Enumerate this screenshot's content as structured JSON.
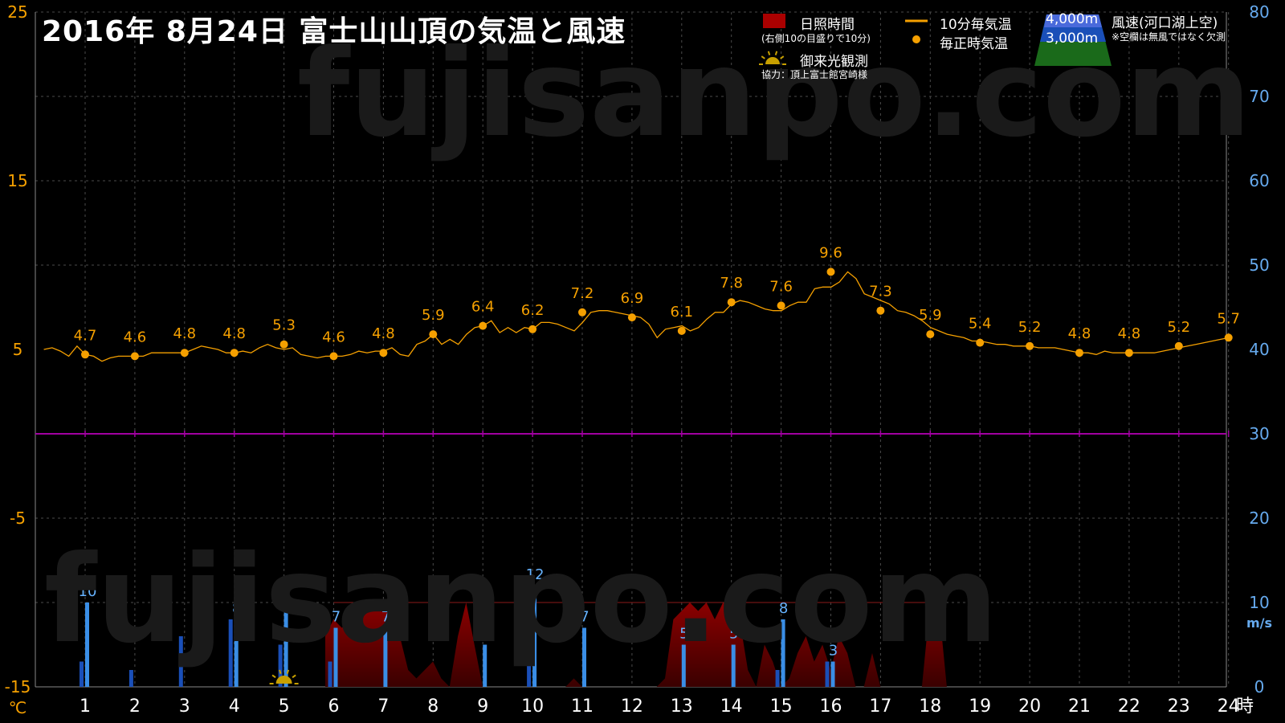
{
  "title": "2016年  8月24日   富士山山頂の気温と風速",
  "watermark": "fujisanpo.com",
  "legend": {
    "sunshine_label": "日照時間",
    "sunshine_note": "(右側10の目盛りで10分)",
    "temp10_label": "10分毎気温",
    "hourly_label": "毎正時気温",
    "goraiko_label": "御来光観測",
    "credit": "協力：頂上富士館宮崎様",
    "wind_4000": "4,000m",
    "wind_3000": "3,000m",
    "wind_label": "風速(河口湖上空)",
    "wind_note": "※空欄は無風ではなく欠測"
  },
  "colors": {
    "temp": "#f5a000",
    "wind_4000": "#3a8ee6",
    "wind_3000": "#1a4fb8",
    "sunshine": "#8b0000",
    "zero_line": "#a000a0",
    "left_axis": "#f5a000",
    "right_axis": "#66aaee"
  },
  "chart_data": {
    "type": "line",
    "x_unit": "時",
    "x_ticks": [
      "1",
      "2",
      "3",
      "4",
      "5",
      "6",
      "7",
      "8",
      "9",
      "10",
      "11",
      "12",
      "13",
      "14",
      "15",
      "16",
      "17",
      "18",
      "19",
      "20",
      "21",
      "22",
      "23",
      "24"
    ],
    "y_left": {
      "unit": "℃",
      "ticks": [
        "25",
        "15",
        "5",
        "-5",
        "-15"
      ],
      "range": [
        -15,
        25
      ]
    },
    "y_right": {
      "unit": "m/s",
      "ticks": [
        "80",
        "70",
        "60",
        "50",
        "40",
        "30",
        "20",
        "10",
        "0"
      ],
      "range": [
        0,
        80
      ]
    },
    "hourly_temperature": {
      "hours": [
        1,
        2,
        3,
        4,
        5,
        6,
        7,
        8,
        9,
        10,
        11,
        12,
        13,
        14,
        15,
        16,
        17,
        18,
        19,
        20,
        21,
        22,
        23,
        24
      ],
      "values": [
        4.7,
        4.6,
        4.8,
        4.8,
        5.3,
        4.6,
        4.8,
        5.9,
        6.4,
        6.2,
        7.2,
        6.9,
        6.1,
        7.8,
        7.6,
        9.6,
        7.3,
        5.9,
        5.4,
        5.2,
        4.8,
        4.8,
        5.2,
        5.7
      ]
    },
    "temperature_10min": {
      "start_hour": 0.17,
      "step_hours": 0.1667,
      "values": [
        5.0,
        5.1,
        4.9,
        4.6,
        5.2,
        4.7,
        4.6,
        4.3,
        4.5,
        4.6,
        4.6,
        4.6,
        4.6,
        4.8,
        4.8,
        4.8,
        4.8,
        4.8,
        5.0,
        5.2,
        5.1,
        5.0,
        4.8,
        4.8,
        4.9,
        4.8,
        5.1,
        5.3,
        5.1,
        5.0,
        5.1,
        4.7,
        4.6,
        4.5,
        4.6,
        4.6,
        4.6,
        4.7,
        4.9,
        4.8,
        4.9,
        4.9,
        5.1,
        4.7,
        4.6,
        5.3,
        5.5,
        5.9,
        5.3,
        5.6,
        5.3,
        5.9,
        6.3,
        6.4,
        6.7,
        6.0,
        6.3,
        6.0,
        6.3,
        6.2,
        6.6,
        6.6,
        6.5,
        6.3,
        6.1,
        6.6,
        7.2,
        7.3,
        7.3,
        7.2,
        7.1,
        7.0,
        6.9,
        6.5,
        5.7,
        6.2,
        6.3,
        6.4,
        6.1,
        6.3,
        6.8,
        7.2,
        7.2,
        7.7,
        7.9,
        7.8,
        7.6,
        7.4,
        7.3,
        7.3,
        7.6,
        7.8,
        7.8,
        8.6,
        8.7,
        8.7,
        9.0,
        9.6,
        9.2,
        8.3,
        8.1,
        7.9,
        7.7,
        7.3,
        7.2,
        7.0,
        6.7,
        6.3,
        6.1,
        5.9,
        5.8,
        5.7,
        5.5,
        5.5,
        5.4,
        5.3,
        5.3,
        5.2,
        5.2,
        5.2,
        5.1,
        5.1,
        5.1,
        5.0,
        4.9,
        4.8,
        4.8,
        4.7,
        4.9,
        4.8,
        4.8,
        4.8,
        4.8,
        4.8,
        4.8,
        4.9,
        5.0,
        5.1,
        5.2,
        5.3,
        5.4,
        5.5,
        5.6,
        5.7
      ]
    },
    "wind_4000m": [
      {
        "hour": 1,
        "value": 10
      },
      {
        "hour": 4,
        "value": 8
      },
      {
        "hour": 5,
        "value": 9
      },
      {
        "hour": 6,
        "value": 7
      },
      {
        "hour": 7,
        "value": 7
      },
      {
        "hour": 9,
        "value": 5
      },
      {
        "hour": 10,
        "value": 12
      },
      {
        "hour": 11,
        "value": 7
      },
      {
        "hour": 13,
        "value": 5
      },
      {
        "hour": 14,
        "value": 5
      },
      {
        "hour": 15,
        "value": 8
      },
      {
        "hour": 16,
        "value": 3
      }
    ],
    "wind_3000m": [
      {
        "hour": 1,
        "value": 3
      },
      {
        "hour": 2,
        "value": 2
      },
      {
        "hour": 3,
        "value": 6
      },
      {
        "hour": 4,
        "value": 8
      },
      {
        "hour": 5,
        "value": 5
      },
      {
        "hour": 6,
        "value": 3
      },
      {
        "hour": 10,
        "value": 3
      },
      {
        "hour": 15,
        "value": 2
      },
      {
        "hour": 16,
        "value": 3
      }
    ],
    "sunshine_10min_minutes": {
      "start_hour": 5.83,
      "step_hours": 0.1667,
      "values": [
        6,
        8,
        7,
        8,
        10,
        10,
        9,
        10,
        8,
        6,
        2,
        1,
        2,
        3,
        1,
        0,
        6,
        10,
        5,
        0,
        0,
        0,
        0,
        0,
        0,
        0,
        0,
        0,
        0,
        0,
        1,
        0,
        0,
        0,
        0,
        0,
        0,
        0,
        0,
        0,
        0,
        1,
        8,
        9,
        10,
        9,
        10,
        8,
        10,
        10,
        8,
        2,
        0,
        5,
        3,
        0,
        1,
        4,
        6,
        3,
        5,
        2,
        6,
        4,
        0,
        0,
        4,
        0,
        0,
        0,
        0,
        0,
        0,
        10,
        10,
        0
      ]
    },
    "goraiko_hour": 5
  }
}
